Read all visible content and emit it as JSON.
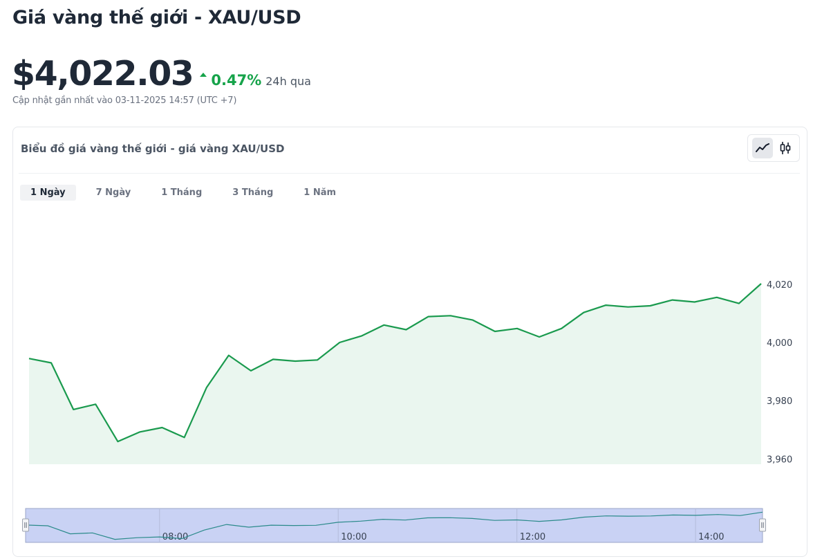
{
  "header": {
    "title": "Giá vàng thế giới - XAU/USD",
    "price": "$4,022.03",
    "change_pct": "0.47%",
    "change_period": "24h qua",
    "updated": "Cập nhật gần nhất vào 03-11-2025 14:57 (UTC +7)"
  },
  "card": {
    "title": "Biểu đồ giá vàng thế giới - giá vàng XAU/USD",
    "chart_types": [
      "line-chart-icon",
      "candlestick-icon"
    ],
    "tabs": [
      {
        "label": "1 Ngày",
        "active": true
      },
      {
        "label": "7 Ngày",
        "active": false
      },
      {
        "label": "1 Tháng",
        "active": false
      },
      {
        "label": "3 Tháng",
        "active": false
      },
      {
        "label": "1 Năm",
        "active": false
      }
    ]
  },
  "colors": {
    "line": "#1a9a4e",
    "area": "#eaf6ef",
    "up": "#16a34a",
    "navigator_fill": "#c9d2f4",
    "navigator_line": "#2a8a8a"
  },
  "chart_data": {
    "type": "area",
    "x": [
      "06:30",
      "06:45",
      "07:00",
      "07:15",
      "07:30",
      "07:45",
      "08:00",
      "08:15",
      "08:30",
      "08:45",
      "09:00",
      "09:15",
      "09:30",
      "09:45",
      "10:00",
      "10:15",
      "10:30",
      "10:45",
      "11:00",
      "11:15",
      "11:30",
      "11:45",
      "12:00",
      "12:15",
      "12:30",
      "12:45",
      "13:00",
      "13:15",
      "13:30",
      "13:45",
      "14:00",
      "14:15",
      "14:30",
      "14:45"
    ],
    "series": [
      {
        "values": [
          3994.5,
          3993.0,
          3977.0,
          3978.8,
          3966.0,
          3969.3,
          3970.8,
          3967.4,
          3984.5,
          3995.6,
          3990.3,
          3994.2,
          3993.6,
          3994.0,
          4000.0,
          4002.3,
          4006.0,
          4004.4,
          4008.9,
          4009.2,
          4007.7,
          4003.8,
          4004.8,
          4001.9,
          4004.8,
          4010.3,
          4012.8,
          4012.2,
          4012.6,
          4014.6,
          4013.9,
          4015.5,
          4013.4,
          4020.2
        ]
      }
    ],
    "y_ticks": [
      "3,960",
      "3,980",
      "4,000",
      "4,020"
    ],
    "y_tick_values": [
      3960,
      3980,
      4000,
      4020
    ],
    "ylim": [
      3958.2,
      4024.0
    ],
    "navigator": {
      "x_ticks": [
        "08:00",
        "10:00",
        "12:00",
        "14:00"
      ],
      "range": [
        "06:30",
        "14:45"
      ]
    },
    "grid": false
  }
}
